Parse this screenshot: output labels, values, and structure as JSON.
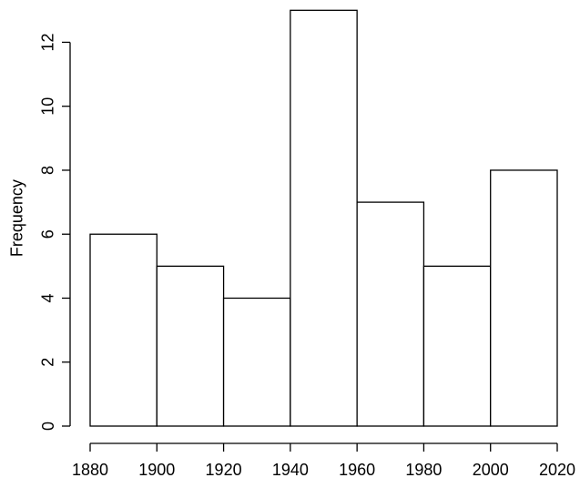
{
  "chart_data": {
    "type": "bar",
    "subtype": "histogram",
    "title": "",
    "xlabel": "",
    "ylabel": "Frequency",
    "bin_edges": [
      1880,
      1900,
      1920,
      1940,
      1960,
      1980,
      2000,
      2020
    ],
    "counts": [
      6,
      5,
      4,
      13,
      7,
      5,
      8
    ],
    "x_ticks": [
      "1880",
      "1900",
      "1920",
      "1940",
      "1960",
      "1980",
      "2000",
      "2020"
    ],
    "x_tick_values": [
      1880,
      1900,
      1920,
      1940,
      1960,
      1980,
      2000,
      2020
    ],
    "y_ticks": [
      "0",
      "2",
      "4",
      "6",
      "8",
      "10",
      "12"
    ],
    "y_tick_values": [
      0,
      2,
      4,
      6,
      8,
      10,
      12
    ],
    "xlim": [
      1880,
      2020
    ],
    "ylim": [
      0,
      13
    ],
    "grid": false,
    "legend": null,
    "y_tick_labels_rotated": true,
    "bar_fill": "#ffffff",
    "bar_stroke": "#000000",
    "axis_color": "#000000",
    "text_color": "#000000",
    "background": "#ffffff"
  }
}
